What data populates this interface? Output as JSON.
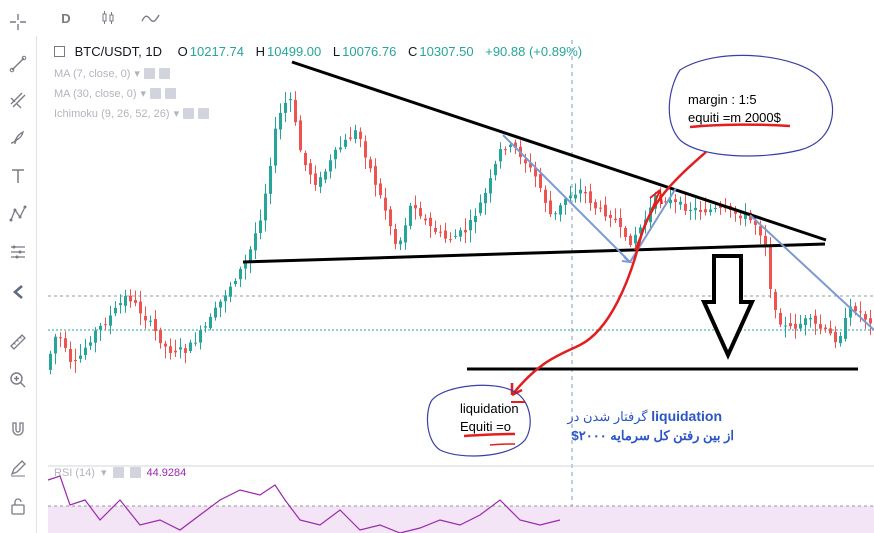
{
  "topbar": {
    "interval": "D",
    "candle_icon": "candlestick-icon",
    "line_icon": "line-icon"
  },
  "toolbar_left": [
    "crosshair-icon",
    "trendline-icon",
    "fib-icon",
    "brush-icon",
    "text-icon",
    "pattern-icon",
    "measure-icon",
    "back-arrow-icon",
    "ruler-icon",
    "zoom-icon",
    "magnet-icon",
    "lock-pencil-icon",
    "lock-icon"
  ],
  "legend": {
    "symbol": "BTC/USDT, 1D",
    "o_label": "O",
    "o_value": "10217.74",
    "h_label": "H",
    "h_value": "10499.00",
    "l_label": "L",
    "l_value": "10076.76",
    "c_label": "C",
    "c_value": "10307.50",
    "change": "+90.88 (+0.89%)"
  },
  "indicators": [
    {
      "name": "MA (7, close, 0)"
    },
    {
      "name": "MA (30, close, 0)"
    },
    {
      "name": "Ichimoku (9, 26, 52, 26)"
    }
  ],
  "rsi": {
    "name": "RSI (14)",
    "value": "44.9284"
  },
  "annotations": {
    "margin_line1": "margin : 1:5",
    "margin_line2": "equiti =m 2000$",
    "liq_line1": "liquidation",
    "liq_line2": "Equiti =o",
    "persian_line1_latin": "liquidation",
    "persian_line1_fa": "گرفتار شدن در",
    "persian_line2": "از بین رفتن کل سرمایه ۲۰۰۰$"
  },
  "colors": {
    "up": "#26a69a",
    "down": "#ef5350",
    "drawing_black": "#000000",
    "drawing_blue": "#7b9ad0",
    "drawing_red": "#e41e1e",
    "rsi": "#9c27b0",
    "rsi_band": "#f3e5f5"
  },
  "chart_data": {
    "type": "candlestick",
    "symbol": "BTC/USDT",
    "interval": "1D",
    "last_bar": {
      "open": 10217.74,
      "high": 10499.0,
      "low": 10076.76,
      "close": 10307.5,
      "change": 90.88,
      "change_pct": 0.89
    },
    "rsi_last": 44.9284
  }
}
